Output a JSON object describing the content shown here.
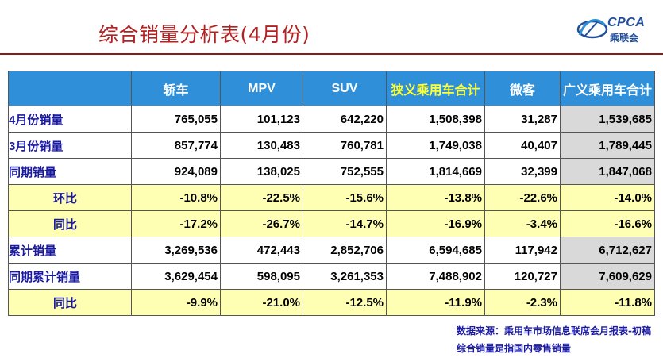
{
  "title": "综合销量分析表(4月份)",
  "logo": {
    "text": "CPCA",
    "sub": "乘联会",
    "tiny": "CPCA"
  },
  "table": {
    "headers": [
      "",
      "轿车",
      "MPV",
      "SUV",
      "狭义乘用车合计",
      "微客",
      "广义乘用车合计"
    ],
    "rows": [
      {
        "label": "4月份销量",
        "values": [
          "765,055",
          "101,123",
          "642,220",
          "1,508,398",
          "31,287",
          "1,539,685"
        ]
      },
      {
        "label": "3月份销量",
        "values": [
          "857,774",
          "130,483",
          "760,781",
          "1,749,038",
          "40,407",
          "1,789,445"
        ]
      },
      {
        "label": "同期销量",
        "values": [
          "924,089",
          "138,025",
          "752,555",
          "1,814,669",
          "32,399",
          "1,847,068"
        ]
      },
      {
        "label": "环比",
        "values": [
          "-10.8%",
          "-22.5%",
          "-15.6%",
          "-13.8%",
          "-22.6%",
          "-14.0%"
        ]
      },
      {
        "label": "同比",
        "values": [
          "-17.2%",
          "-26.7%",
          "-14.7%",
          "-16.9%",
          "-3.4%",
          "-16.6%"
        ]
      },
      {
        "label": "累计销量",
        "values": [
          "3,269,536",
          "472,443",
          "2,852,706",
          "6,594,685",
          "117,942",
          "6,712,627"
        ]
      },
      {
        "label": "同期累计销量",
        "values": [
          "3,629,454",
          "598,095",
          "3,261,353",
          "7,488,902",
          "120,727",
          "7,609,629"
        ]
      },
      {
        "label": "同比",
        "values": [
          "-9.9%",
          "-21.0%",
          "-12.5%",
          "-11.9%",
          "-2.3%",
          "-11.8%"
        ]
      }
    ]
  },
  "footer": {
    "source": "数据来源：乘用车市场信息联席会月报表-初稿",
    "note": "综合销量是指国内零售销量"
  },
  "colors": {
    "header_bg": "#2f8fd8",
    "highlight_header_text": "#ffff33",
    "pct_row_bg": "#ffffb3",
    "total_col_bg": "#d9d9d9",
    "title": "#b22222",
    "label_text": "#1a1aa0"
  }
}
